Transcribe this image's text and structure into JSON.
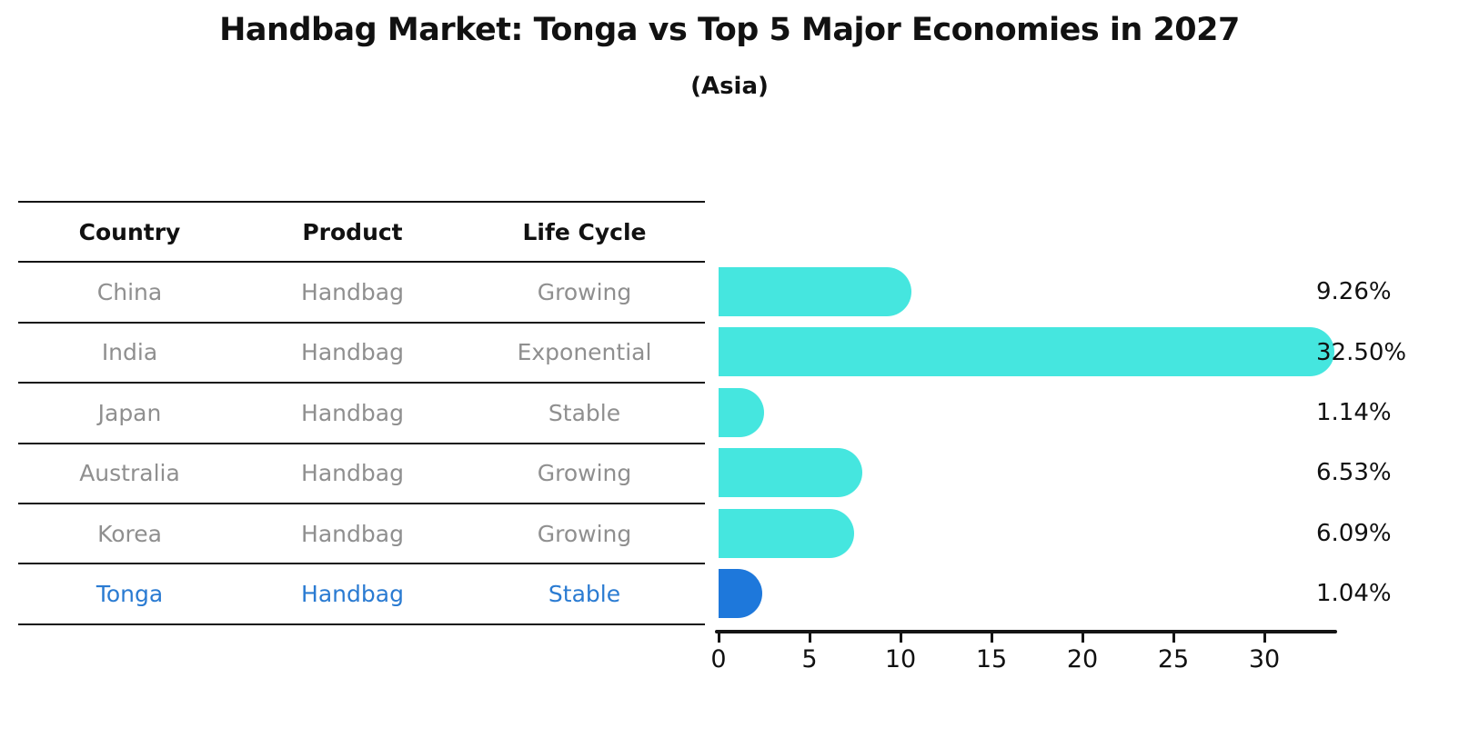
{
  "title": "Handbag Market: Tonga vs Top 5 Major Economies in 2027",
  "subtitle": "(Asia)",
  "colors": {
    "bar_default": "#45E6DF",
    "bar_highlight": "#1E78DB",
    "table_text": "#8F8F8F",
    "highlight_text": "#2A7BD2",
    "axis_text": "#111111"
  },
  "table": {
    "columns": [
      "Country",
      "Product",
      "Life Cycle"
    ],
    "rows": [
      {
        "country": "China",
        "product": "Handbag",
        "life_cycle": "Growing",
        "highlight": false
      },
      {
        "country": "India",
        "product": "Handbag",
        "life_cycle": "Exponential",
        "highlight": false
      },
      {
        "country": "Japan",
        "product": "Handbag",
        "life_cycle": "Stable",
        "highlight": false
      },
      {
        "country": "Australia",
        "product": "Handbag",
        "life_cycle": "Growing",
        "highlight": false
      },
      {
        "country": "Korea",
        "product": "Handbag",
        "life_cycle": "Growing",
        "highlight": false
      },
      {
        "country": "Tonga",
        "product": "Handbag",
        "life_cycle": "Stable",
        "highlight": true
      }
    ]
  },
  "chart_data": {
    "type": "bar",
    "orientation": "horizontal",
    "title": "Handbag Market: Tonga vs Top 5 Major Economies in 2027",
    "subtitle": "(Asia)",
    "categories": [
      "China",
      "India",
      "Japan",
      "Australia",
      "Korea",
      "Tonga"
    ],
    "values": [
      9.26,
      32.5,
      1.14,
      6.53,
      6.09,
      1.04
    ],
    "value_labels": [
      "9.26%",
      "32.50%",
      "1.14%",
      "6.53%",
      "6.09%",
      "1.04%"
    ],
    "highlight_category": "Tonga",
    "xlabel": "",
    "ylabel": "",
    "xlim": [
      0,
      33.9
    ],
    "xticks": [
      0,
      5,
      10,
      15,
      20,
      25,
      30
    ],
    "grid": false,
    "legend": null
  }
}
